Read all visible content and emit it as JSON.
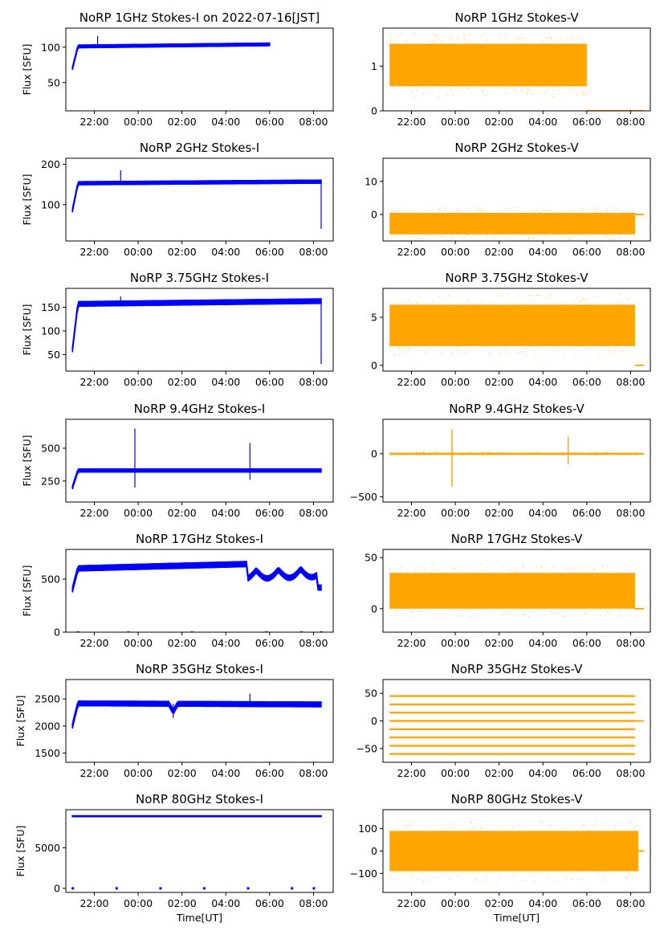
{
  "figure": {
    "x_label": "Time[UT]",
    "y_label": "Flux [SFU]",
    "x_ticks": [
      "22:00",
      "00:00",
      "02:00",
      "04:00",
      "06:00",
      "08:00"
    ],
    "colors": {
      "stokes_i": "#0000ff",
      "stokes_v": "#ffa500"
    }
  },
  "chart_data": [
    {
      "type": "scatter",
      "title": "NoRP 1GHz Stokes-I on 2022-07-16[JST]",
      "xlabel": "",
      "ylabel": "Flux [SFU]",
      "ylim": [
        10,
        127
      ],
      "yticks": [
        50,
        100
      ],
      "x_range_hours": [
        20.7,
        32.9
      ],
      "series": [
        {
          "start": 21.0,
          "end": 30.0,
          "rise_from": 70,
          "level_start": 101,
          "level_end": 104,
          "band": 2,
          "spikes": [
            [
              22.15,
              116
            ]
          ]
        }
      ]
    },
    {
      "type": "scatter",
      "title": "NoRP 1GHz Stokes-V",
      "xlabel": "",
      "ylabel": "",
      "ylim": [
        0,
        1.85
      ],
      "yticks": [
        0,
        1
      ],
      "x_range_hours": [
        20.7,
        32.9
      ],
      "series": [
        {
          "start": 21.0,
          "end": 30.0,
          "center": 1.0,
          "band_low": 0.55,
          "band_high": 1.5,
          "tail_from": 30.0,
          "tail_level": 0.0
        }
      ]
    },
    {
      "type": "scatter",
      "title": "NoRP 2GHz Stokes-I",
      "xlabel": "",
      "ylabel": "Flux [SFU]",
      "ylim": [
        10,
        215
      ],
      "yticks": [
        100,
        200
      ],
      "x_range_hours": [
        20.7,
        32.9
      ],
      "series": [
        {
          "start": 21.0,
          "end": 32.35,
          "rise_from": 85,
          "level_start": 153,
          "level_end": 157,
          "band": 4,
          "spikes": [
            [
              23.2,
              185
            ],
            [
              32.35,
              40
            ]
          ]
        }
      ]
    },
    {
      "type": "scatter",
      "title": "NoRP 2GHz Stokes-V",
      "xlabel": "",
      "ylabel": "",
      "ylim": [
        -8,
        17
      ],
      "yticks": [
        0,
        10
      ],
      "x_range_hours": [
        20.7,
        32.9
      ],
      "series": [
        {
          "start": 21.0,
          "end": 32.2,
          "center": -2.5,
          "band_low": -6,
          "band_high": 0.5,
          "tail_from": 32.2,
          "tail_level": 0.0
        }
      ]
    },
    {
      "type": "scatter",
      "title": "NoRP 3.75GHz Stokes-I",
      "xlabel": "",
      "ylabel": "Flux [SFU]",
      "ylim": [
        15,
        190
      ],
      "yticks": [
        50,
        100,
        150
      ],
      "x_range_hours": [
        20.7,
        32.9
      ],
      "series": [
        {
          "start": 21.0,
          "end": 32.35,
          "rise_from": 60,
          "level_start": 157,
          "level_end": 163,
          "band": 5,
          "spikes": [
            [
              23.2,
              173
            ],
            [
              32.35,
              30
            ]
          ]
        }
      ]
    },
    {
      "type": "scatter",
      "title": "NoRP 3.75GHz Stokes-V",
      "xlabel": "",
      "ylabel": "",
      "ylim": [
        -0.6,
        8
      ],
      "yticks": [
        0,
        5
      ],
      "x_range_hours": [
        20.7,
        32.9
      ],
      "series": [
        {
          "start": 21.0,
          "end": 32.2,
          "center": 4.0,
          "band_low": 2.0,
          "band_high": 6.3,
          "tail_from": 32.2,
          "tail_level": 0.0
        }
      ]
    },
    {
      "type": "scatter",
      "title": "NoRP 9.4GHz Stokes-I",
      "xlabel": "",
      "ylabel": "Flux [SFU]",
      "ylim": [
        90,
        720
      ],
      "yticks": [
        250,
        500
      ],
      "x_range_hours": [
        20.7,
        32.9
      ],
      "series": [
        {
          "start": 21.0,
          "end": 32.35,
          "rise_from": 200,
          "level_start": 330,
          "level_end": 330,
          "band": 12,
          "spikes": [
            [
              23.85,
              650
            ],
            [
              23.85,
              200
            ],
            [
              29.1,
              540
            ],
            [
              29.1,
              260
            ]
          ]
        }
      ]
    },
    {
      "type": "scatter",
      "title": "NoRP 9.4GHz Stokes-V",
      "xlabel": "",
      "ylabel": "",
      "ylim": [
        -560,
        400
      ],
      "yticks": [
        -500,
        0
      ],
      "x_range_hours": [
        20.7,
        32.9
      ],
      "series": [
        {
          "start": 21.0,
          "end": 32.35,
          "center": 0,
          "band_low": -12,
          "band_high": 12,
          "tail_from": 32.35,
          "tail_level": 0.0,
          "spikes": [
            [
              23.85,
              280
            ],
            [
              23.85,
              -380
            ],
            [
              29.15,
              200
            ],
            [
              29.15,
              -120
            ]
          ]
        }
      ]
    },
    {
      "type": "scatter",
      "title": "NoRP 17GHz Stokes-I",
      "xlabel": "",
      "ylabel": "Flux [SFU]",
      "ylim": [
        0,
        780
      ],
      "yticks": [
        0,
        500
      ],
      "x_range_hours": [
        20.7,
        32.9
      ],
      "series": [
        {
          "start": 21.0,
          "end": 32.35,
          "rise_from": 400,
          "level_start": 600,
          "level_end": 660,
          "band": 25,
          "spikes": []
        }
      ]
    },
    {
      "type": "scatter",
      "title": "NoRP 17GHz Stokes-V",
      "xlabel": "",
      "ylabel": "",
      "ylim": [
        -23,
        58
      ],
      "yticks": [
        0,
        50
      ],
      "x_range_hours": [
        20.7,
        32.9
      ],
      "series": [
        {
          "start": 21.0,
          "end": 32.2,
          "center": 15,
          "band_low": 0,
          "band_high": 35,
          "tail_from": 32.2,
          "tail_level": 0.0
        }
      ]
    },
    {
      "type": "scatter",
      "title": "NoRP 35GHz Stokes-I",
      "xlabel": "",
      "ylabel": "Flux [SFU]",
      "ylim": [
        1330,
        2860
      ],
      "yticks": [
        1500,
        2000,
        2500
      ],
      "x_range_hours": [
        20.7,
        32.9
      ],
      "series": [
        {
          "start": 21.0,
          "end": 32.35,
          "rise_from": 2000,
          "level_start": 2420,
          "level_end": 2400,
          "band": 45,
          "spikes": [
            [
              25.6,
              2150
            ],
            [
              29.1,
              2600
            ]
          ]
        }
      ]
    },
    {
      "type": "scatter",
      "title": "NoRP 35GHz Stokes-V",
      "xlabel": "",
      "ylabel": "",
      "ylim": [
        -75,
        75
      ],
      "yticks": [
        -50,
        0,
        50
      ],
      "x_range_hours": [
        20.7,
        32.9
      ],
      "series": [
        {
          "start": 21.0,
          "end": 32.2,
          "levels": [
            45,
            30,
            15,
            0,
            -15,
            -30,
            -45,
            -60
          ],
          "tail_from": 32.2,
          "tail_level": 0.0
        }
      ]
    },
    {
      "type": "scatter",
      "title": "NoRP 80GHz Stokes-I",
      "xlabel": "Time[UT]",
      "ylabel": "Flux [SFU]",
      "ylim": [
        -500,
        9700
      ],
      "yticks": [
        0,
        5000
      ],
      "x_range_hours": [
        20.7,
        32.9
      ],
      "series": [
        {
          "start": 21.0,
          "end": 32.35,
          "rise_from": 8900,
          "level_start": 8900,
          "level_end": 8900,
          "band": 60,
          "spikes": [],
          "dropouts": [
            21.0,
            23.0,
            25.0,
            27.0,
            29.0,
            31.0,
            32.0
          ]
        }
      ]
    },
    {
      "type": "scatter",
      "title": "NoRP 80GHz Stokes-V",
      "xlabel": "Time[UT]",
      "ylabel": "",
      "ylim": [
        -185,
        185
      ],
      "yticks": [
        -100,
        0,
        100
      ],
      "x_range_hours": [
        20.7,
        32.9
      ],
      "series": [
        {
          "start": 21.0,
          "end": 32.35,
          "center": 0,
          "band_low": -90,
          "band_high": 90,
          "tail_from": 32.35,
          "tail_level": 0.0
        }
      ]
    }
  ]
}
